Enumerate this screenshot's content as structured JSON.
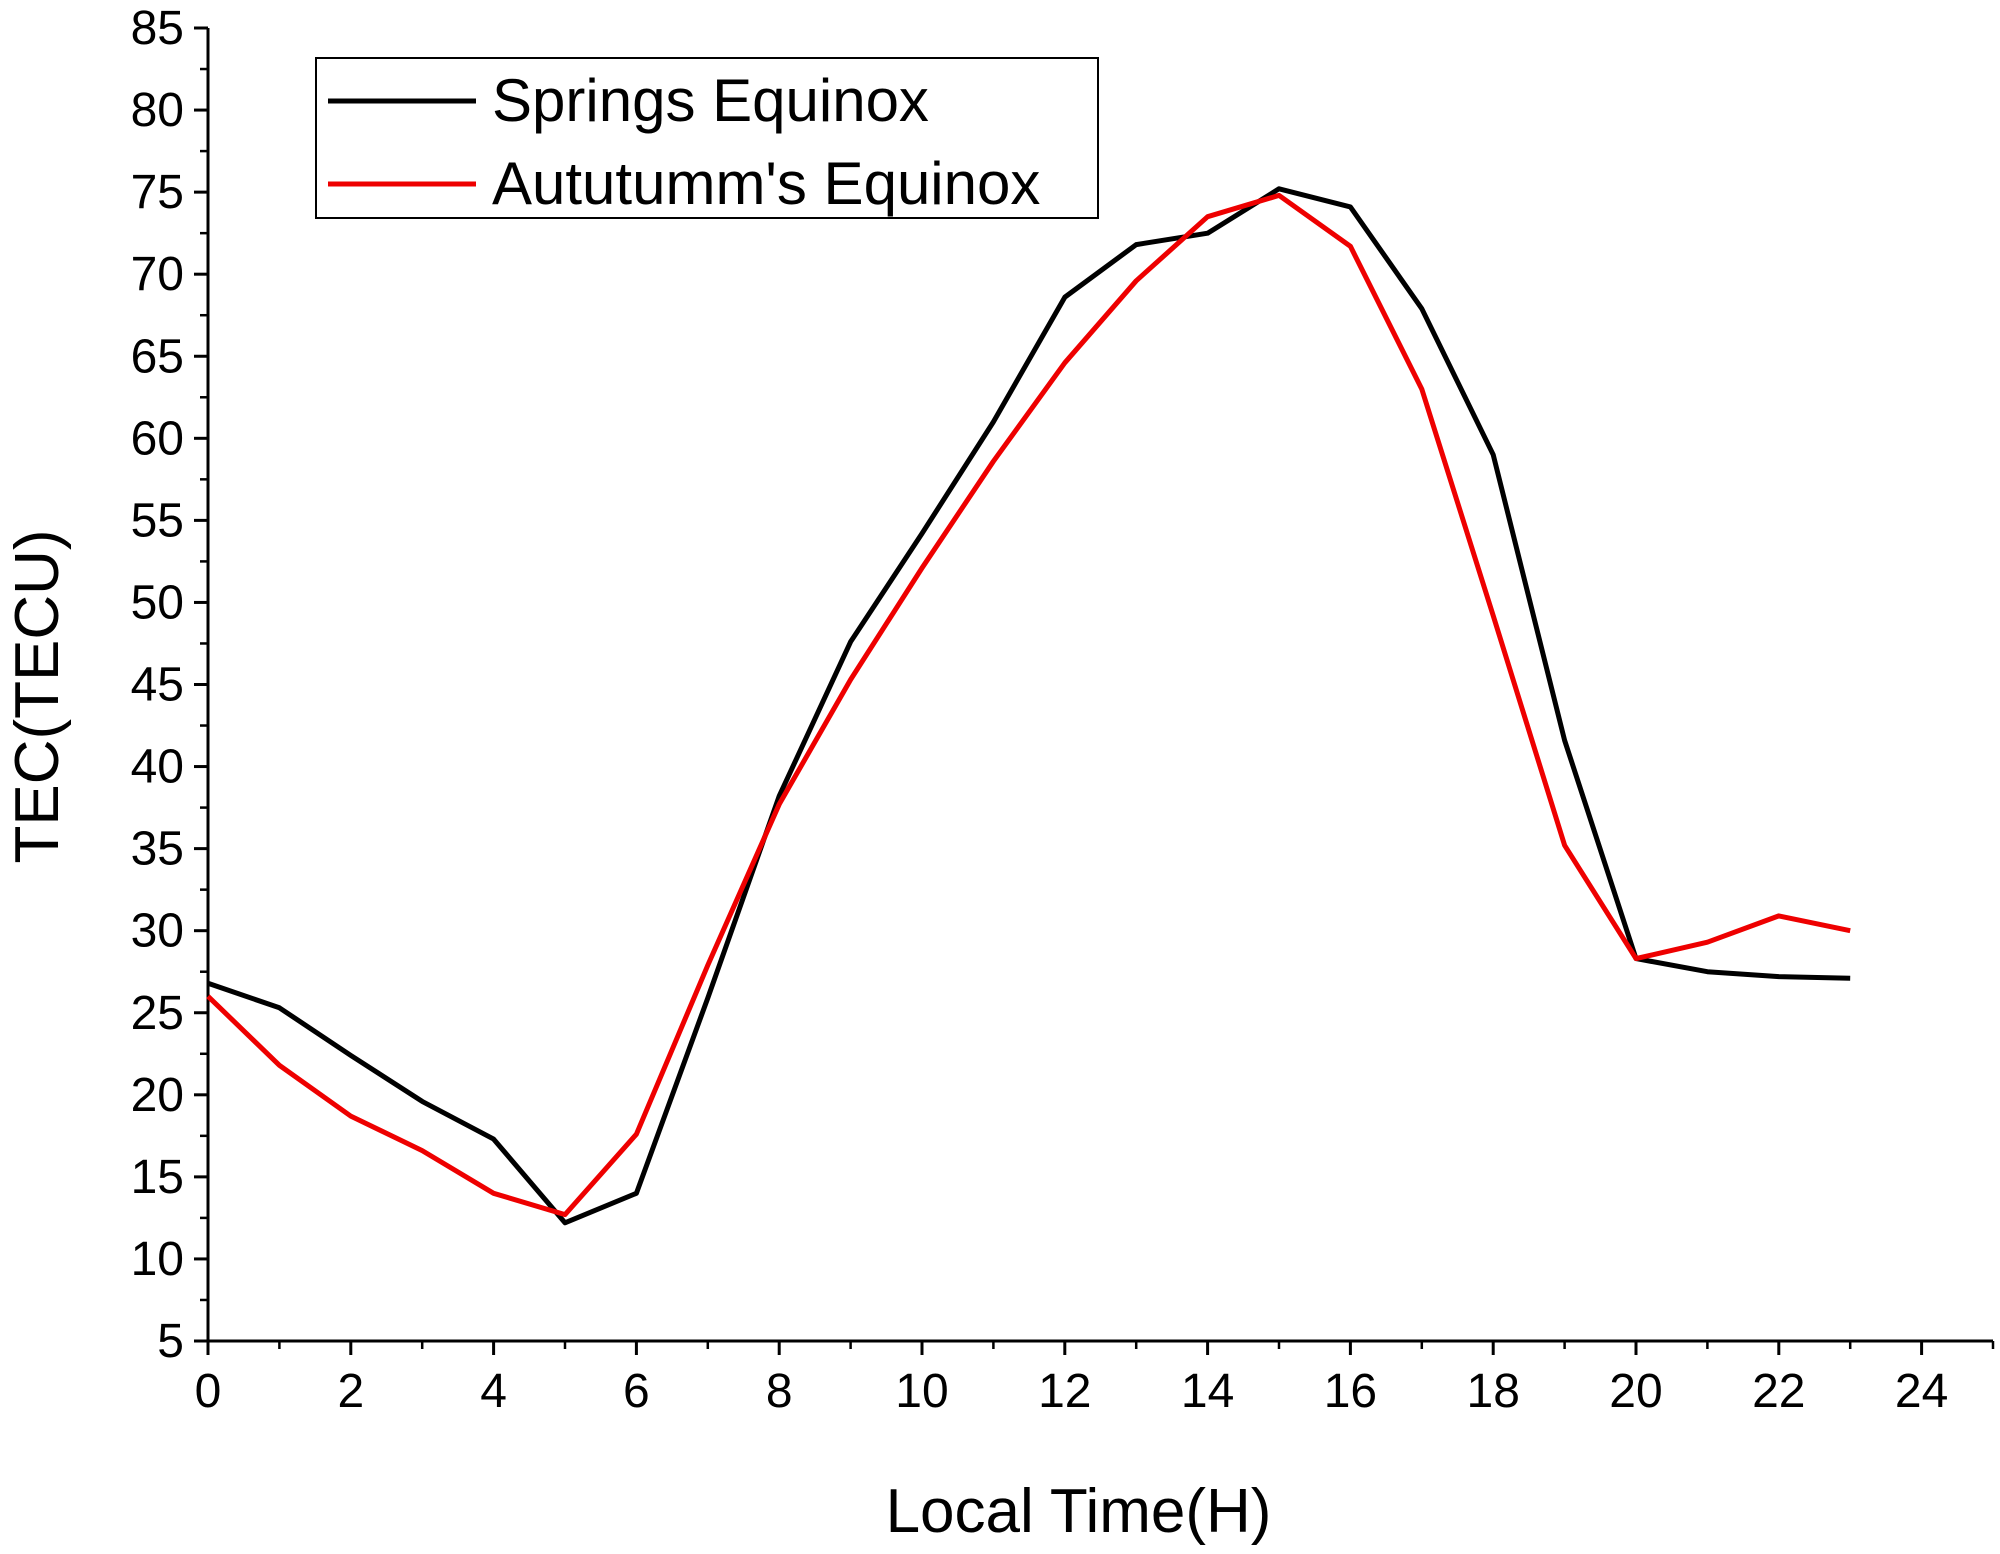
{
  "chart_data": {
    "type": "line",
    "title": "",
    "xlabel": "Local Time(H)",
    "ylabel": "TEC(TECU)",
    "xlim": [
      0,
      25
    ],
    "ylim": [
      5,
      85
    ],
    "x_ticks": [
      "0",
      "2",
      "4",
      "6",
      "8",
      "10",
      "12",
      "14",
      "16",
      "18",
      "20",
      "22",
      "24"
    ],
    "y_ticks": [
      "5",
      "10",
      "15",
      "20",
      "25",
      "30",
      "35",
      "40",
      "45",
      "50",
      "55",
      "60",
      "65",
      "70",
      "75",
      "80",
      "85"
    ],
    "grid": false,
    "legend_position": "top-left",
    "x": [
      0,
      1,
      2,
      3,
      4,
      5,
      6,
      7,
      8,
      9,
      10,
      11,
      12,
      13,
      14,
      15,
      16,
      17,
      18,
      19,
      20,
      21,
      22,
      23
    ],
    "series": [
      {
        "name": "Springs Equinox",
        "color": "#000000",
        "values": [
          26.8,
          25.3,
          22.4,
          19.6,
          17.3,
          12.2,
          14.0,
          25.9,
          38.2,
          47.6,
          54.2,
          61.0,
          68.6,
          71.8,
          72.5,
          75.2,
          74.1,
          67.9,
          59.0,
          41.6,
          28.3,
          27.5,
          27.2,
          27.1
        ]
      },
      {
        "name": "Aututumm's Equinox",
        "color": "#ee0000",
        "values": [
          26.0,
          21.8,
          18.7,
          16.6,
          14.0,
          12.7,
          17.6,
          27.9,
          37.7,
          45.3,
          52.1,
          58.6,
          64.6,
          69.6,
          73.5,
          74.8,
          71.7,
          63.0,
          49.2,
          35.2,
          28.3,
          29.3,
          30.9,
          30.0
        ]
      }
    ]
  }
}
